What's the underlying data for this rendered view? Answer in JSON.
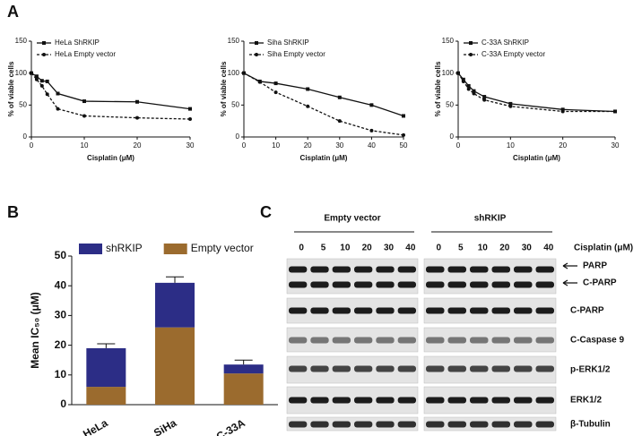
{
  "panel_labels": [
    "A",
    "B",
    "C"
  ],
  "chart_data": [
    {
      "type": "line",
      "x": [
        0,
        1,
        2,
        3,
        5,
        10,
        20,
        30
      ],
      "xlim": [
        0,
        30
      ],
      "xticks": [
        0,
        10,
        20,
        30
      ],
      "ylim": [
        0,
        150
      ],
      "yticks": [
        0,
        50,
        100,
        150
      ],
      "xlabel": "Cisplatin (μM)",
      "ylabel": "% of viable cells",
      "legend": "upper left",
      "series": [
        {
          "name": "HeLa ShRKIP",
          "color": "#111111",
          "line_style": "solid",
          "marker": "square",
          "values": [
            100,
            95,
            88,
            87,
            68,
            56,
            55,
            44
          ]
        },
        {
          "name": "HeLa Empty  vector",
          "color": "#111111",
          "line_style": "dashed",
          "marker": "circle",
          "values": [
            100,
            90,
            80,
            67,
            44,
            33,
            30,
            28
          ]
        }
      ]
    },
    {
      "type": "line",
      "x": [
        0,
        5,
        10,
        20,
        30,
        40,
        50
      ],
      "xlim": [
        0,
        50
      ],
      "xticks": [
        0,
        10,
        20,
        30,
        40,
        50
      ],
      "ylim": [
        0,
        150
      ],
      "yticks": [
        0,
        50,
        100,
        150
      ],
      "xlabel": "Cisplatin (μM)",
      "ylabel": "% of viable cells",
      "legend": "upper left",
      "series": [
        {
          "name": "Siha ShRKIP",
          "color": "#111111",
          "line_style": "solid",
          "marker": "square",
          "values": [
            100,
            87,
            84,
            75,
            62,
            50,
            33
          ]
        },
        {
          "name": "Siha Empty vector",
          "color": "#111111",
          "line_style": "dashed",
          "marker": "circle",
          "values": [
            100,
            86,
            70,
            48,
            25,
            10,
            3
          ]
        }
      ]
    },
    {
      "type": "line",
      "x": [
        0,
        1,
        2,
        3,
        5,
        10,
        20,
        30
      ],
      "xlim": [
        0,
        30
      ],
      "xticks": [
        0,
        10,
        20,
        30
      ],
      "ylim": [
        0,
        150
      ],
      "yticks": [
        0,
        50,
        100,
        150
      ],
      "xlabel": "Cisplatin (μM)",
      "ylabel": "% of viable cells",
      "legend": "upper left",
      "series": [
        {
          "name": "C-33A ShRKIP",
          "color": "#111111",
          "line_style": "solid",
          "marker": "square",
          "values": [
            100,
            90,
            80,
            72,
            63,
            52,
            43,
            40
          ]
        },
        {
          "name": "C-33A Empty vector",
          "color": "#111111",
          "line_style": "dashed",
          "marker": "circle",
          "values": [
            100,
            87,
            75,
            68,
            58,
            48,
            40,
            40
          ]
        }
      ]
    },
    {
      "type": "stacked_bar",
      "categories": [
        "HeLa",
        "SiHa",
        "C-33A"
      ],
      "ylim": [
        0,
        50
      ],
      "yticks": [
        0,
        10,
        20,
        30,
        40,
        50
      ],
      "ylabel": "Mean IC₅₀ (μM)",
      "legend": "top",
      "series": [
        {
          "name": "Empty vector",
          "color": "#9b6b2e",
          "values": [
            6,
            26,
            10.5
          ]
        },
        {
          "name": "shRKIP",
          "color": "#2c2d86",
          "values": [
            13,
            15,
            3
          ],
          "errors": [
            1.5,
            2,
            1.5
          ]
        }
      ]
    }
  ],
  "blot": {
    "groups": [
      {
        "label": "Empty vector",
        "lanes": [
          "0",
          "5",
          "10",
          "20",
          "30",
          "40"
        ]
      },
      {
        "label": "shRKIP",
        "lanes": [
          "0",
          "5",
          "10",
          "20",
          "30",
          "40"
        ]
      }
    ],
    "condition_label": "Cisplatin (μM)",
    "rows": [
      "PARP",
      "C-PARP",
      "C-PARP",
      "C-Caspase 9",
      "p-ERK1/2",
      "ERK1/2",
      "β-Tubulin"
    ]
  }
}
